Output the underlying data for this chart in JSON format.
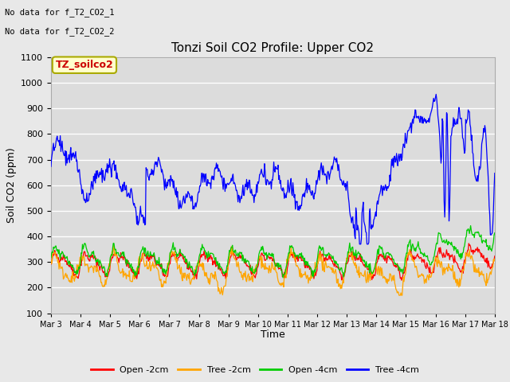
{
  "title": "Tonzi Soil CO2 Profile: Upper CO2",
  "ylabel": "Soil CO2 (ppm)",
  "xlabel": "Time",
  "top_left_text_line1": "No data for f_T2_CO2_1",
  "top_left_text_line2": "No data for f_T2_CO2_2",
  "legend_label_text": "TZ_soilco2",
  "ylim": [
    100,
    1100
  ],
  "yticks": [
    100,
    200,
    300,
    400,
    500,
    600,
    700,
    800,
    900,
    1000,
    1100
  ],
  "x_tick_labels": [
    "Mar 3",
    "Mar 4",
    "Mar 5",
    "Mar 6",
    "Mar 7",
    "Mar 8",
    "Mar 9",
    "Mar 10",
    "Mar 11",
    "Mar 12",
    "Mar 13",
    "Mar 14",
    "Mar 15",
    "Mar 16",
    "Mar 17",
    "Mar 18"
  ],
  "colors": {
    "open_2cm": "#FF0000",
    "tree_2cm": "#FFA500",
    "open_4cm": "#00CC00",
    "tree_4cm": "#0000FF"
  },
  "legend_entries": [
    "Open -2cm",
    "Tree -2cm",
    "Open -4cm",
    "Tree -4cm"
  ],
  "fig_bg_color": "#E8E8E8",
  "plot_bg_color": "#DCDCDC",
  "grid_color": "#FFFFFF",
  "figsize": [
    6.4,
    4.8
  ],
  "dpi": 100
}
